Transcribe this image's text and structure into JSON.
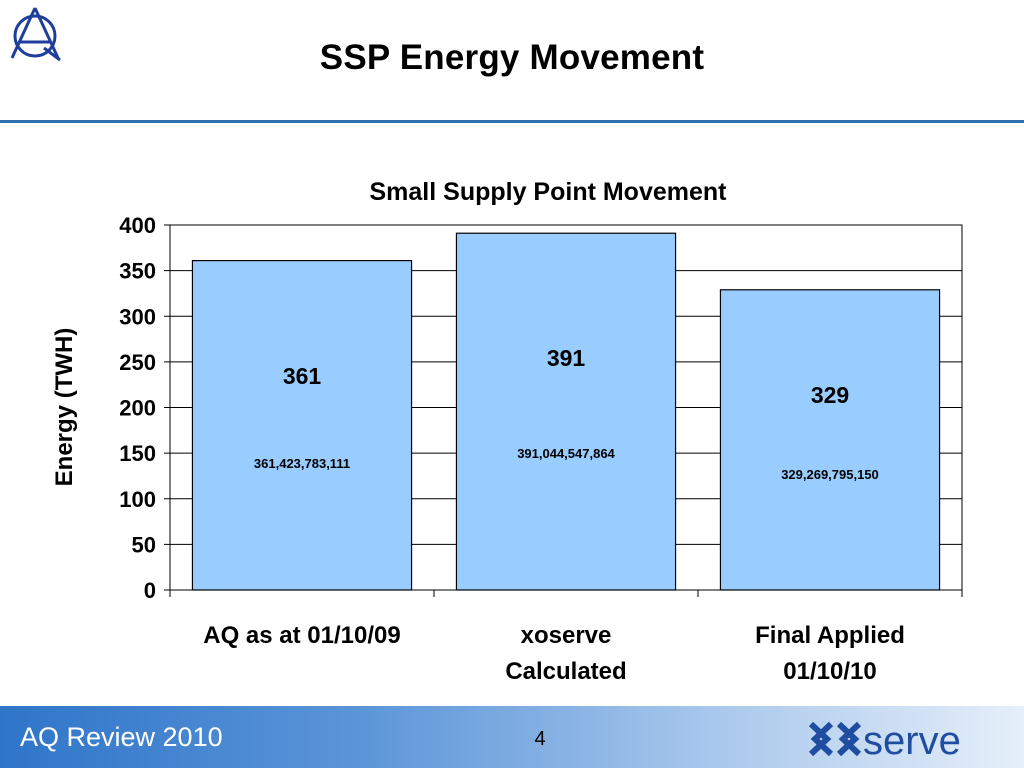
{
  "slide": {
    "title": "SSP Energy Movement",
    "footer_label": "AQ Review 2010",
    "page_number": "4",
    "brand_logo": "xoserve",
    "corner_logo": "AQ"
  },
  "chart_data": {
    "type": "bar",
    "title": "Small Supply Point Movement",
    "xlabel": "",
    "ylabel": "Energy (TWH)",
    "ylim": [
      0,
      400
    ],
    "yticks": [
      0,
      50,
      100,
      150,
      200,
      250,
      300,
      350,
      400
    ],
    "grid": true,
    "categories": [
      [
        "AQ as at 01/10/09"
      ],
      [
        "xoserve",
        "Calculated"
      ],
      [
        "Final Applied",
        "01/10/10"
      ]
    ],
    "values": [
      361,
      391,
      329
    ],
    "value_labels": [
      "361",
      "391",
      "329"
    ],
    "detail_labels": [
      "361,423,783,111",
      "391,044,547,864",
      "329,269,795,150"
    ],
    "bar_color": "#99ccff"
  }
}
